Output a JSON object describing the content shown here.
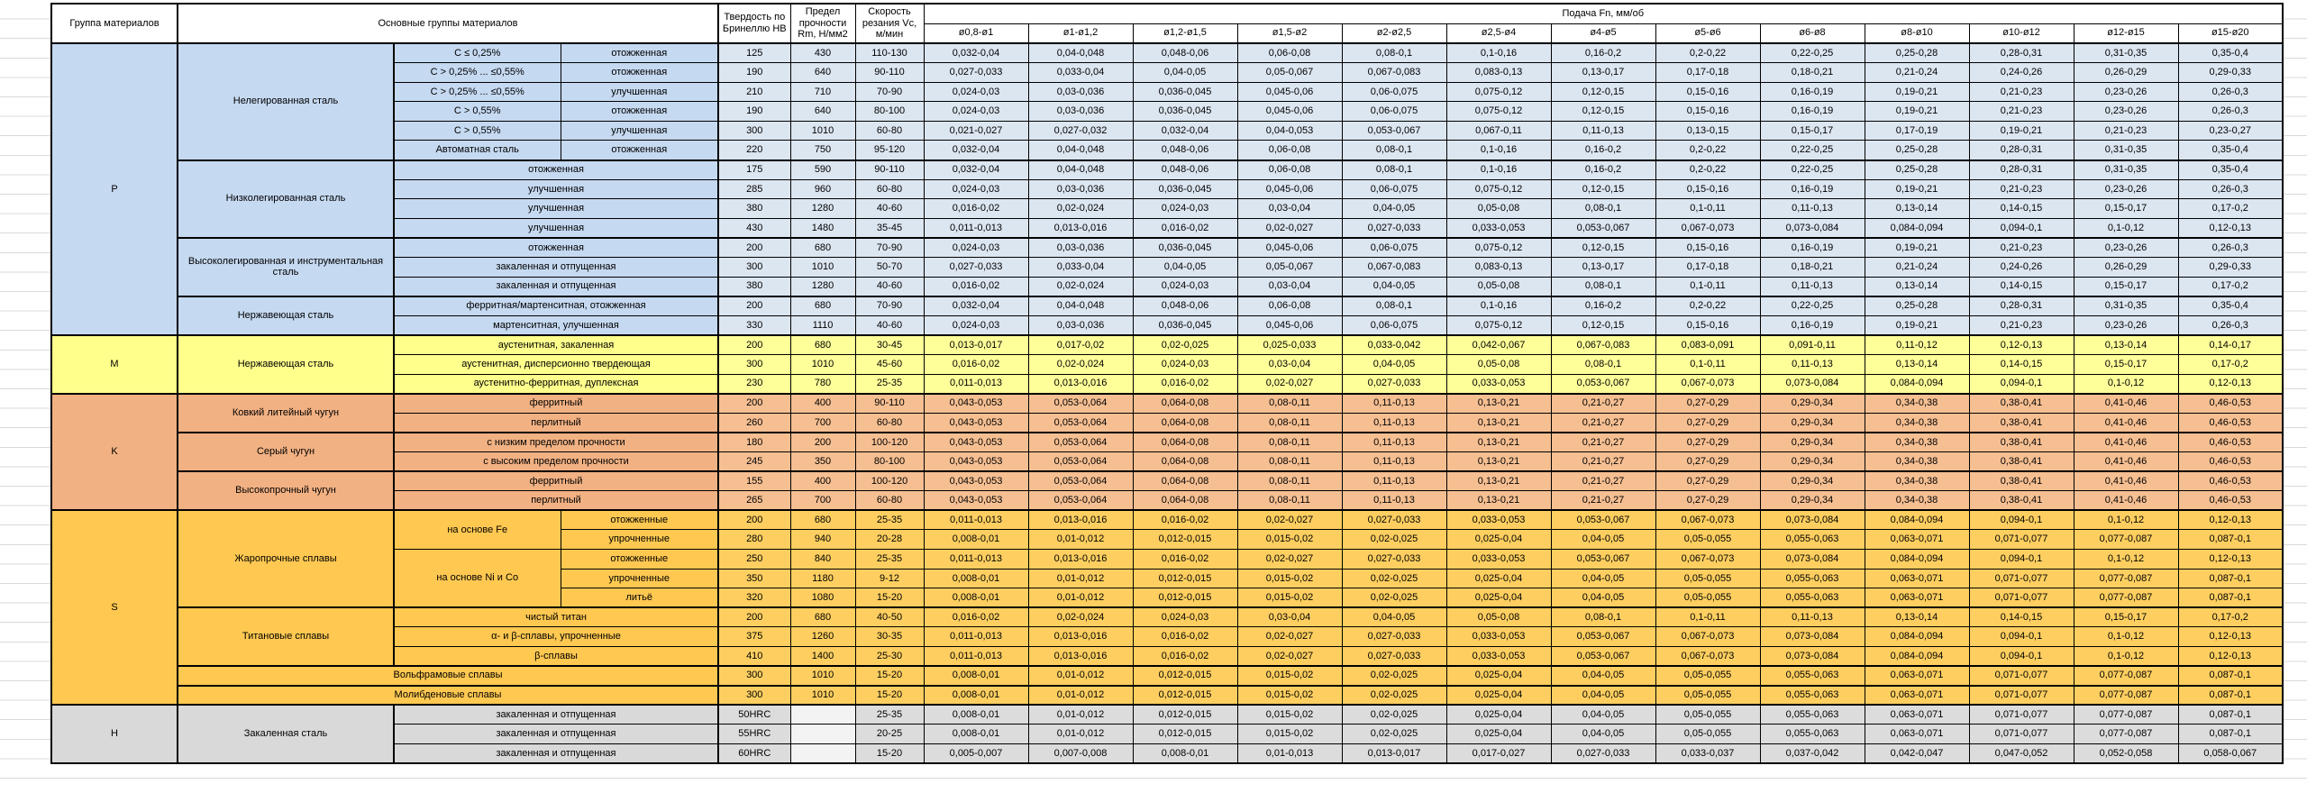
{
  "header": {
    "group": "Группа материалов",
    "materials": "Основные группы материалов",
    "hb": "Твердость по Бринеллю HB",
    "rm": "Предел прочности Rm, Н/мм2",
    "vc": "Скорость резания Vc, м/мин",
    "feed": "Подача Fn, мм/об"
  },
  "diameters": [
    "ø0,8-ø1",
    "ø1-ø1,2",
    "ø1,2-ø1,5",
    "ø1,5-ø2",
    "ø2-ø2,5",
    "ø2,5-ø4",
    "ø4-ø5",
    "ø5-ø6",
    "ø6-ø8",
    "ø8-ø10",
    "ø10-ø12",
    "ø12-ø15",
    "ø15-ø20"
  ],
  "patterns": {
    "a": [
      "0,032-0,04",
      "0,04-0,048",
      "0,048-0,06",
      "0,06-0,08",
      "0,08-0,1",
      "0,1-0,16",
      "0,16-0,2",
      "0,2-0,22",
      "0,22-0,25",
      "0,25-0,28",
      "0,28-0,31",
      "0,31-0,35",
      "0,35-0,4"
    ],
    "b": [
      "0,027-0,033",
      "0,033-0,04",
      "0,04-0,05",
      "0,05-0,067",
      "0,067-0,083",
      "0,083-0,13",
      "0,13-0,17",
      "0,17-0,18",
      "0,18-0,21",
      "0,21-0,24",
      "0,24-0,26",
      "0,26-0,29",
      "0,29-0,33"
    ],
    "c": [
      "0,024-0,03",
      "0,03-0,036",
      "0,036-0,045",
      "0,045-0,06",
      "0,06-0,075",
      "0,075-0,12",
      "0,12-0,15",
      "0,15-0,16",
      "0,16-0,19",
      "0,19-0,21",
      "0,21-0,23",
      "0,23-0,26",
      "0,26-0,3"
    ],
    "d": [
      "0,021-0,027",
      "0,027-0,032",
      "0,032-0,04",
      "0,04-0,053",
      "0,053-0,067",
      "0,067-0,11",
      "0,11-0,13",
      "0,13-0,15",
      "0,15-0,17",
      "0,17-0,19",
      "0,19-0,21",
      "0,21-0,23",
      "0,23-0,27"
    ],
    "e": [
      "0,016-0,02",
      "0,02-0,024",
      "0,024-0,03",
      "0,03-0,04",
      "0,04-0,05",
      "0,05-0,08",
      "0,08-0,1",
      "0,1-0,11",
      "0,11-0,13",
      "0,13-0,14",
      "0,14-0,15",
      "0,15-0,17",
      "0,17-0,2"
    ],
    "f": [
      "0,011-0,013",
      "0,013-0,016",
      "0,016-0,02",
      "0,02-0,027",
      "0,027-0,033",
      "0,033-0,053",
      "0,053-0,067",
      "0,067-0,073",
      "0,073-0,084",
      "0,084-0,094",
      "0,094-0,1",
      "0,1-0,12",
      "0,12-0,13"
    ],
    "g": [
      "0,013-0,017",
      "0,017-0,02",
      "0,02-0,025",
      "0,025-0,033",
      "0,033-0,042",
      "0,042-0,067",
      "0,067-0,083",
      "0,083-0,091",
      "0,091-0,11",
      "0,11-0,12",
      "0,12-0,13",
      "0,13-0,14",
      "0,14-0,17"
    ],
    "k": [
      "0,043-0,053",
      "0,053-0,064",
      "0,064-0,08",
      "0,08-0,11",
      "0,11-0,13",
      "0,13-0,21",
      "0,21-0,27",
      "0,27-0,29",
      "0,29-0,34",
      "0,34-0,38",
      "0,38-0,41",
      "0,41-0,46",
      "0,46-0,53"
    ],
    "h": [
      "0,008-0,01",
      "0,01-0,012",
      "0,012-0,015",
      "0,015-0,02",
      "0,02-0,025",
      "0,025-0,04",
      "0,04-0,05",
      "0,05-0,055",
      "0,055-0,063",
      "0,063-0,071",
      "0,071-0,077",
      "0,077-0,087",
      "0,087-0,1"
    ],
    "z": [
      "0,005-0,007",
      "0,007-0,008",
      "0,008-0,01",
      "0,01-0,013",
      "0,013-0,017",
      "0,017-0,027",
      "0,027-0,033",
      "0,033-0,037",
      "0,037-0,042",
      "0,042-0,047",
      "0,047-0,052",
      "0,052-0,058",
      "0,058-0,067"
    ]
  },
  "groups": [
    {
      "label": "P",
      "head_bg": "#c5d9f1",
      "cell_bg": "#dce6f1",
      "rows": [
        {
          "mat": {
            "t": "Нелегированная сталь",
            "rs": 6
          },
          "spec": {
            "t": "C ≤ 0,25%"
          },
          "treat": {
            "t": "отожженная"
          },
          "hb": "125",
          "rm": "430",
          "vc": "110-130",
          "fp": "a"
        },
        {
          "spec": {
            "t": "C > 0,25% ... ≤0,55%"
          },
          "treat": {
            "t": "отожженная"
          },
          "hb": "190",
          "rm": "640",
          "vc": "90-110",
          "fp": "b"
        },
        {
          "spec": {
            "t": "C > 0,25% ... ≤0,55%"
          },
          "treat": {
            "t": "улучшенная"
          },
          "hb": "210",
          "rm": "710",
          "vc": "70-90",
          "fp": "c"
        },
        {
          "spec": {
            "t": "C > 0,55%"
          },
          "treat": {
            "t": "отожженная"
          },
          "hb": "190",
          "rm": "640",
          "vc": "80-100",
          "fp": "c"
        },
        {
          "spec": {
            "t": "C > 0,55%"
          },
          "treat": {
            "t": "улучшенная"
          },
          "hb": "300",
          "rm": "1010",
          "vc": "60-80",
          "fp": "d"
        },
        {
          "spec": {
            "t": "Автоматная сталь"
          },
          "treat": {
            "t": "отожженная"
          },
          "hb": "220",
          "rm": "750",
          "vc": "95-120",
          "fp": "a"
        },
        {
          "mat": {
            "t": "Низколегированная сталь",
            "rs": 4
          },
          "spec": {
            "t": "отожженная",
            "cs": 2
          },
          "hb": "175",
          "rm": "590",
          "vc": "90-110",
          "fp": "a"
        },
        {
          "spec": {
            "t": "улучшенная",
            "cs": 2
          },
          "hb": "285",
          "rm": "960",
          "vc": "60-80",
          "fp": "c"
        },
        {
          "spec": {
            "t": "улучшенная",
            "cs": 2
          },
          "hb": "380",
          "rm": "1280",
          "vc": "40-60",
          "fp": "e"
        },
        {
          "spec": {
            "t": "улучшенная",
            "cs": 2
          },
          "hb": "430",
          "rm": "1480",
          "vc": "35-45",
          "fp": "f"
        },
        {
          "mat": {
            "t": "Высоколегированная и инструментальная сталь",
            "rs": 3
          },
          "spec": {
            "t": "отожженная",
            "cs": 2
          },
          "hb": "200",
          "rm": "680",
          "vc": "70-90",
          "fp": "c"
        },
        {
          "spec": {
            "t": "закаленная и отпущенная",
            "cs": 2
          },
          "hb": "300",
          "rm": "1010",
          "vc": "50-70",
          "fp": "b"
        },
        {
          "spec": {
            "t": "закаленная и отпущенная",
            "cs": 2
          },
          "hb": "380",
          "rm": "1280",
          "vc": "40-60",
          "fp": "e"
        },
        {
          "mat": {
            "t": "Нержавеющая сталь",
            "rs": 2
          },
          "spec": {
            "t": "ферритная/мартенситная, отожженная",
            "cs": 2
          },
          "hb": "200",
          "rm": "680",
          "vc": "70-90",
          "fp": "a"
        },
        {
          "spec": {
            "t": "мартенситная, улучшенная",
            "cs": 2
          },
          "hb": "330",
          "rm": "1110",
          "vc": "40-60",
          "fp": "c"
        }
      ]
    },
    {
      "label": "M",
      "head_bg": "#ffff8c",
      "cell_bg": "#ffff99",
      "rows": [
        {
          "mat": {
            "t": "Нержавеющая сталь",
            "rs": 3
          },
          "spec": {
            "t": "аустенитная, закаленная",
            "cs": 2
          },
          "hb": "200",
          "rm": "680",
          "vc": "30-45",
          "fp": "g"
        },
        {
          "spec": {
            "t": "аустенитная, дисперсионно твердеющая",
            "cs": 2
          },
          "hb": "300",
          "rm": "1010",
          "vc": "45-60",
          "fp": "e"
        },
        {
          "spec": {
            "t": "аустенитно-ферритная, дуплексная",
            "cs": 2
          },
          "hb": "230",
          "rm": "780",
          "vc": "25-35",
          "fp": "f"
        }
      ]
    },
    {
      "label": "K",
      "head_bg": "#f2b183",
      "cell_bg": "#f6bf92",
      "rows": [
        {
          "mat": {
            "t": "Ковкий литейный чугун",
            "rs": 2
          },
          "spec": {
            "t": "ферритный",
            "cs": 2
          },
          "hb": "200",
          "rm": "400",
          "vc": "90-110",
          "fp": "k"
        },
        {
          "spec": {
            "t": "перлитный",
            "cs": 2
          },
          "hb": "260",
          "rm": "700",
          "vc": "60-80",
          "fp": "k"
        },
        {
          "mat": {
            "t": "Серый чугун",
            "rs": 2
          },
          "spec": {
            "t": "с низким пределом прочности",
            "cs": 2
          },
          "hb": "180",
          "rm": "200",
          "vc": "100-120",
          "fp": "k"
        },
        {
          "spec": {
            "t": "с высоким пределом прочности",
            "cs": 2
          },
          "hb": "245",
          "rm": "350",
          "vc": "80-100",
          "fp": "k"
        },
        {
          "mat": {
            "t": "Высокопрочный чугун",
            "rs": 2
          },
          "spec": {
            "t": "ферритный",
            "cs": 2
          },
          "hb": "155",
          "rm": "400",
          "vc": "100-120",
          "fp": "k"
        },
        {
          "spec": {
            "t": "перлитный",
            "cs": 2
          },
          "hb": "265",
          "rm": "700",
          "vc": "60-80",
          "fp": "k"
        }
      ]
    },
    {
      "label": "S",
      "head_bg": "#ffc851",
      "cell_bg": "#fecf60",
      "rows": [
        {
          "mat": {
            "t": "Жаропрочные сплавы",
            "rs": 5
          },
          "spec": {
            "t": "на основе Fe",
            "rs": 2
          },
          "treat": {
            "t": "отожженные"
          },
          "hb": "200",
          "rm": "680",
          "vc": "25-35",
          "fp": "f"
        },
        {
          "treat": {
            "t": "упрочненные"
          },
          "hb": "280",
          "rm": "940",
          "vc": "20-28",
          "fp": "h"
        },
        {
          "spec": {
            "t": "на основе Ni и Co",
            "rs": 3
          },
          "treat": {
            "t": "отожженные"
          },
          "hb": "250",
          "rm": "840",
          "vc": "25-35",
          "fp": "f"
        },
        {
          "treat": {
            "t": "упрочненные"
          },
          "hb": "350",
          "rm": "1180",
          "vc": "9-12",
          "fp": "h"
        },
        {
          "treat": {
            "t": "литьё"
          },
          "hb": "320",
          "rm": "1080",
          "vc": "15-20",
          "fp": "h"
        },
        {
          "mat": {
            "t": "Титановые сплавы",
            "rs": 3
          },
          "spec": {
            "t": "чистый титан",
            "cs": 2
          },
          "hb": "200",
          "rm": "680",
          "vc": "40-50",
          "fp": "e"
        },
        {
          "spec": {
            "t": "α- и β-сплавы, упрочненные",
            "cs": 2
          },
          "hb": "375",
          "rm": "1260",
          "vc": "30-35",
          "fp": "f"
        },
        {
          "spec": {
            "t": "β-сплавы",
            "cs": 2
          },
          "hb": "410",
          "rm": "1400",
          "vc": "25-30",
          "fp": "f"
        },
        {
          "mat": {
            "t": "Вольфрамовые сплавы",
            "cs": 3
          },
          "hb": "300",
          "rm": "1010",
          "vc": "15-20",
          "fp": "h"
        },
        {
          "mat": {
            "t": "Молибденовые сплавы",
            "cs": 3
          },
          "hb": "300",
          "rm": "1010",
          "vc": "15-20",
          "fp": "h"
        }
      ]
    },
    {
      "label": "H",
      "head_bg": "#d9d9d9",
      "cell_bg": "#dcdcdc",
      "empty_bg": "#f3f3f3",
      "rows": [
        {
          "mat": {
            "t": "Закаленная сталь",
            "rs": 3
          },
          "spec": {
            "t": "закаленная и отпущенная",
            "cs": 2
          },
          "hb": "50HRC",
          "rm": "",
          "vc": "25-35",
          "fp": "h"
        },
        {
          "spec": {
            "t": "закаленная и отпущенная",
            "cs": 2
          },
          "hb": "55HRC",
          "rm": "",
          "vc": "20-25",
          "fp": "h"
        },
        {
          "spec": {
            "t": "закаленная и отпущенная",
            "cs": 2
          },
          "hb": "60HRC",
          "rm": "",
          "vc": "15-20",
          "fp": "z"
        }
      ]
    }
  ]
}
